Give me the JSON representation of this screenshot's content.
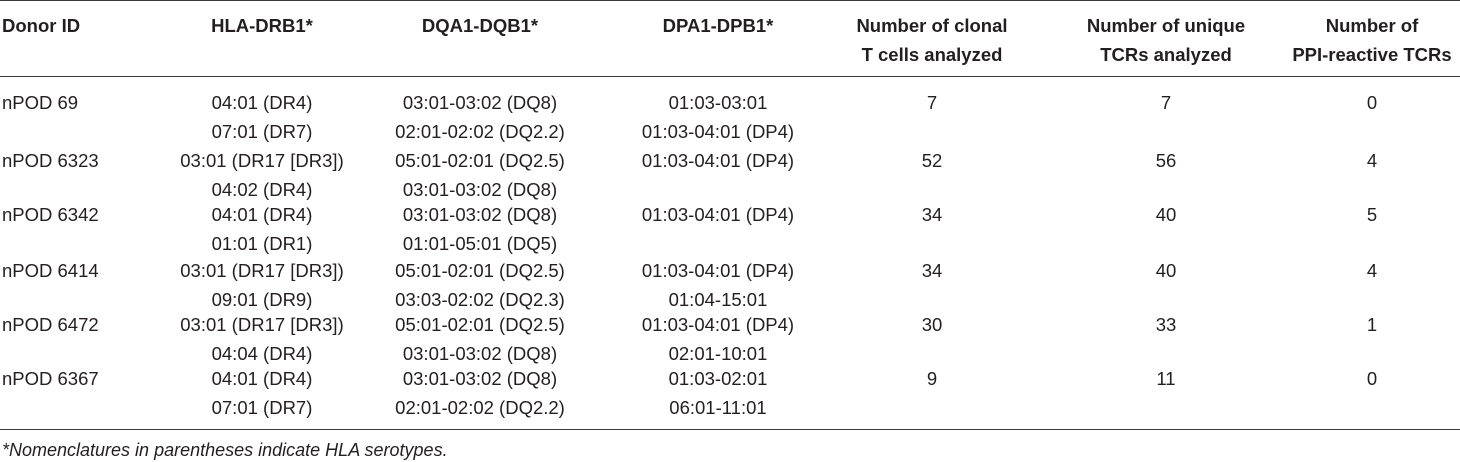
{
  "table": {
    "headers": {
      "donor_id": "Donor ID",
      "hla_drb1": "HLA-DRB1*",
      "dqa1_dqb1": "DQA1-DQB1*",
      "dpa1_dpb1": "DPA1-DPB1*",
      "clonal_line1": "Number of clonal",
      "clonal_line2": "T cells analyzed",
      "unique_line1": "Number of unique",
      "unique_line2": "TCRs analyzed",
      "ppi_line1": "Number of",
      "ppi_line2": "PPI-reactive TCRs"
    },
    "rows": [
      {
        "donor": "nPOD 69",
        "drb1": [
          "04:01 (DR4)",
          "07:01 (DR7)"
        ],
        "dq": [
          "03:01-03:02 (DQ8)",
          "02:01-02:02 (DQ2.2)"
        ],
        "dp": [
          "01:03-03:01",
          "01:03-04:01 (DP4)"
        ],
        "clonal": "7",
        "unique": "7",
        "ppi": "0"
      },
      {
        "donor": "nPOD 6323",
        "drb1": [
          "03:01 (DR17 [DR3])",
          "04:02 (DR4)"
        ],
        "dq": [
          "05:01-02:01 (DQ2.5)",
          "03:01-03:02 (DQ8)"
        ],
        "dp": [
          "01:03-04:01 (DP4)",
          ""
        ],
        "clonal": "52",
        "unique": "56",
        "ppi": "4"
      },
      {
        "donor": "nPOD 6342",
        "drb1": [
          "04:01 (DR4)",
          "01:01 (DR1)"
        ],
        "dq": [
          "03:01-03:02 (DQ8)",
          "01:01-05:01 (DQ5)"
        ],
        "dp": [
          "01:03-04:01 (DP4)",
          ""
        ],
        "clonal": "34",
        "unique": "40",
        "ppi": "5"
      },
      {
        "donor": "nPOD 6414",
        "drb1": [
          "03:01 (DR17 [DR3])",
          "09:01 (DR9)"
        ],
        "dq": [
          "05:01-02:01 (DQ2.5)",
          "03:03-02:02 (DQ2.3)"
        ],
        "dp": [
          "01:03-04:01 (DP4)",
          "01:04-15:01"
        ],
        "clonal": "34",
        "unique": "40",
        "ppi": "4"
      },
      {
        "donor": "nPOD 6472",
        "drb1": [
          "03:01 (DR17 [DR3])",
          "04:04 (DR4)"
        ],
        "dq": [
          "05:01-02:01 (DQ2.5)",
          "03:01-03:02 (DQ8)"
        ],
        "dp": [
          "01:03-04:01 (DP4)",
          "02:01-10:01"
        ],
        "clonal": "30",
        "unique": "33",
        "ppi": "1"
      },
      {
        "donor": "nPOD 6367",
        "drb1": [
          "04:01 (DR4)",
          "07:01 (DR7)"
        ],
        "dq": [
          "03:01-03:02 (DQ8)",
          "02:01-02:02 (DQ2.2)"
        ],
        "dp": [
          "01:03-02:01",
          "06:01-11:01"
        ],
        "clonal": "9",
        "unique": "11",
        "ppi": "0"
      }
    ],
    "footnote": "*Nomenclatures in parentheses indicate HLA serotypes."
  }
}
